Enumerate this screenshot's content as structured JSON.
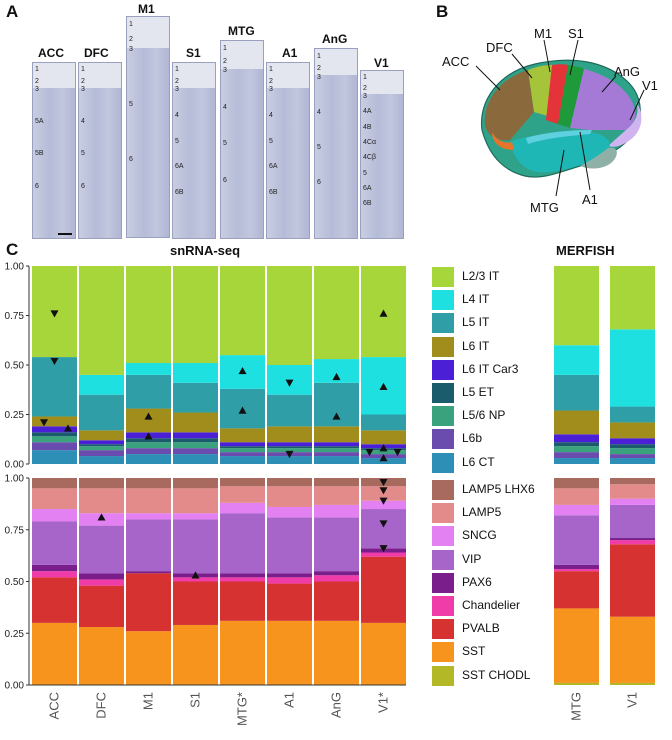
{
  "panel_a": {
    "letter": "A",
    "regions": [
      {
        "name": "ACC",
        "layers": [
          "1",
          "2",
          "3",
          "5A",
          "5B",
          "6"
        ]
      },
      {
        "name": "DFC",
        "layers": [
          "1",
          "2",
          "3",
          "4",
          "5",
          "6"
        ]
      },
      {
        "name": "M1",
        "layers": [
          "1",
          "2",
          "3",
          "5",
          "6"
        ]
      },
      {
        "name": "S1",
        "layers": [
          "1",
          "2",
          "3",
          "4",
          "5",
          "6A",
          "6B"
        ]
      },
      {
        "name": "MTG",
        "layers": [
          "1",
          "2",
          "3",
          "4",
          "5",
          "6"
        ]
      },
      {
        "name": "A1",
        "layers": [
          "1",
          "2",
          "3",
          "4",
          "5",
          "6A",
          "6B"
        ]
      },
      {
        "name": "AnG",
        "layers": [
          "1",
          "2",
          "3",
          "4",
          "5",
          "6"
        ]
      },
      {
        "name": "V1",
        "layers": [
          "1",
          "2",
          "3",
          "4A",
          "4B",
          "4Cα",
          "4Cβ",
          "5",
          "6A",
          "6B"
        ]
      }
    ]
  },
  "panel_b": {
    "letter": "B",
    "labels": [
      "ACC",
      "DFC",
      "M1",
      "S1",
      "AnG",
      "V1",
      "MTG",
      "A1"
    ]
  },
  "panel_c": {
    "letter": "C",
    "snrna_title": "snRNA-seq",
    "merfish_title": "MERFISH"
  },
  "chart_data": {
    "type": "bar",
    "stacked": true,
    "title": "snRNA-seq",
    "secondary_title": "MERFISH",
    "ylim": [
      0,
      1
    ],
    "yticks": [
      "0.00",
      "0.25",
      "0.50",
      "0.75",
      "1.00"
    ],
    "snrna_categories": [
      "ACC",
      "DFC",
      "M1",
      "S1",
      "MTG*",
      "A1",
      "AnG",
      "V1*"
    ],
    "merfish_categories": [
      "MTG",
      "V1"
    ],
    "excitatory_subclasses": [
      "L6 CT",
      "L6b",
      "L5/6 NP",
      "L5 ET",
      "L6 IT Car3",
      "L6 IT",
      "L5 IT",
      "L4 IT",
      "L2/3 IT"
    ],
    "excitatory_colors": [
      "#2d8fb5",
      "#6a4cae",
      "#3aa37d",
      "#1a5c6b",
      "#4b1fd6",
      "#a08d1c",
      "#2f9ea6",
      "#1ee0e0",
      "#a6d63a"
    ],
    "excitatory": {
      "ACC": [
        0.07,
        0.04,
        0.03,
        0.02,
        0.03,
        0.05,
        0.3,
        0.0,
        0.46
      ],
      "DFC": [
        0.04,
        0.03,
        0.02,
        0.01,
        0.02,
        0.05,
        0.18,
        0.1,
        0.55
      ],
      "M1": [
        0.05,
        0.03,
        0.03,
        0.02,
        0.03,
        0.12,
        0.17,
        0.06,
        0.49
      ],
      "S1": [
        0.05,
        0.03,
        0.03,
        0.02,
        0.03,
        0.1,
        0.15,
        0.1,
        0.49
      ],
      "MTG*": [
        0.04,
        0.02,
        0.02,
        0.01,
        0.02,
        0.07,
        0.2,
        0.17,
        0.45
      ],
      "A1": [
        0.04,
        0.02,
        0.02,
        0.01,
        0.02,
        0.08,
        0.16,
        0.15,
        0.5
      ],
      "AnG": [
        0.04,
        0.02,
        0.02,
        0.01,
        0.02,
        0.08,
        0.22,
        0.12,
        0.47
      ],
      "V1*": [
        0.03,
        0.02,
        0.02,
        0.01,
        0.02,
        0.07,
        0.08,
        0.29,
        0.46
      ],
      "MTG": [
        0.03,
        0.03,
        0.03,
        0.02,
        0.04,
        0.12,
        0.18,
        0.15,
        0.4
      ],
      "V1": [
        0.03,
        0.02,
        0.03,
        0.02,
        0.03,
        0.08,
        0.08,
        0.39,
        0.32
      ]
    },
    "inhibitory_subclasses": [
      "SST CHODL",
      "SST",
      "PVALB",
      "Chandelier",
      "PAX6",
      "VIP",
      "SNCG",
      "LAMP5",
      "LAMP5 LHX6"
    ],
    "inhibitory_colors": [
      "#b3b826",
      "#f7941d",
      "#d63232",
      "#f03ca8",
      "#7a1e8c",
      "#a865c9",
      "#e380f2",
      "#e38a8a",
      "#a86a5e"
    ],
    "inhibitory": {
      "ACC": [
        0.0,
        0.3,
        0.22,
        0.03,
        0.03,
        0.21,
        0.06,
        0.1,
        0.05
      ],
      "DFC": [
        0.0,
        0.28,
        0.2,
        0.03,
        0.03,
        0.23,
        0.06,
        0.12,
        0.05
      ],
      "M1": [
        0.0,
        0.26,
        0.28,
        0.0,
        0.01,
        0.25,
        0.03,
        0.12,
        0.05
      ],
      "S1": [
        0.0,
        0.29,
        0.21,
        0.02,
        0.02,
        0.26,
        0.03,
        0.12,
        0.05
      ],
      "MTG*": [
        0.0,
        0.31,
        0.19,
        0.02,
        0.02,
        0.29,
        0.05,
        0.08,
        0.04
      ],
      "A1": [
        0.0,
        0.31,
        0.18,
        0.03,
        0.02,
        0.27,
        0.05,
        0.1,
        0.04
      ],
      "AnG": [
        0.0,
        0.31,
        0.19,
        0.03,
        0.02,
        0.26,
        0.06,
        0.09,
        0.04
      ],
      "V1*": [
        0.0,
        0.3,
        0.32,
        0.02,
        0.02,
        0.19,
        0.04,
        0.07,
        0.04
      ],
      "MTG": [
        0.01,
        0.36,
        0.18,
        0.01,
        0.02,
        0.24,
        0.05,
        0.08,
        0.05
      ],
      "V1": [
        0.01,
        0.32,
        0.35,
        0.02,
        0.01,
        0.16,
        0.03,
        0.07,
        0.03
      ]
    },
    "markers": {
      "excitatory": [
        {
          "region": "ACC",
          "value": 0.76,
          "dir": "down"
        },
        {
          "region": "ACC",
          "value": 0.52,
          "dir": "down"
        },
        {
          "region": "ACC",
          "value": 0.21,
          "dir": "down"
        },
        {
          "region": "ACC",
          "value": 0.18,
          "dir": "up"
        },
        {
          "region": "M1",
          "value": 0.24,
          "dir": "up"
        },
        {
          "region": "M1",
          "value": 0.14,
          "dir": "up"
        },
        {
          "region": "MTG*",
          "value": 0.47,
          "dir": "up"
        },
        {
          "region": "MTG*",
          "value": 0.27,
          "dir": "up"
        },
        {
          "region": "A1",
          "value": 0.41,
          "dir": "down"
        },
        {
          "region": "A1",
          "value": 0.05,
          "dir": "down"
        },
        {
          "region": "AnG",
          "value": 0.44,
          "dir": "up"
        },
        {
          "region": "AnG",
          "value": 0.24,
          "dir": "up"
        },
        {
          "region": "V1*",
          "value": 0.76,
          "dir": "up"
        },
        {
          "region": "V1*",
          "value": 0.39,
          "dir": "up"
        },
        {
          "region": "V1*",
          "value": 0.08,
          "dir": "up"
        },
        {
          "region": "V1*",
          "value": 0.06,
          "dir": "down"
        },
        {
          "region": "V1*",
          "value": 0.03,
          "dir": "up"
        }
      ],
      "inhibitory": [
        {
          "region": "DFC",
          "value": 0.81,
          "dir": "up"
        },
        {
          "region": "S1",
          "value": 0.53,
          "dir": "up"
        },
        {
          "region": "V1*",
          "value": 0.98,
          "dir": "down"
        },
        {
          "region": "V1*",
          "value": 0.94,
          "dir": "down"
        },
        {
          "region": "V1*",
          "value": 0.89,
          "dir": "down"
        },
        {
          "region": "V1*",
          "value": 0.78,
          "dir": "down"
        },
        {
          "region": "V1*",
          "value": 0.66,
          "dir": "down"
        }
      ]
    },
    "legend_excitatory": [
      "L2/3 IT",
      "L4 IT",
      "L5 IT",
      "L6 IT",
      "L6 IT Car3",
      "L5 ET",
      "L5/6 NP",
      "L6b",
      "L6 CT"
    ],
    "legend_inhibitory": [
      "LAMP5 LHX6",
      "LAMP5",
      "SNCG",
      "VIP",
      "PAX6",
      "Chandelier",
      "PVALB",
      "SST",
      "SST CHODL"
    ]
  }
}
